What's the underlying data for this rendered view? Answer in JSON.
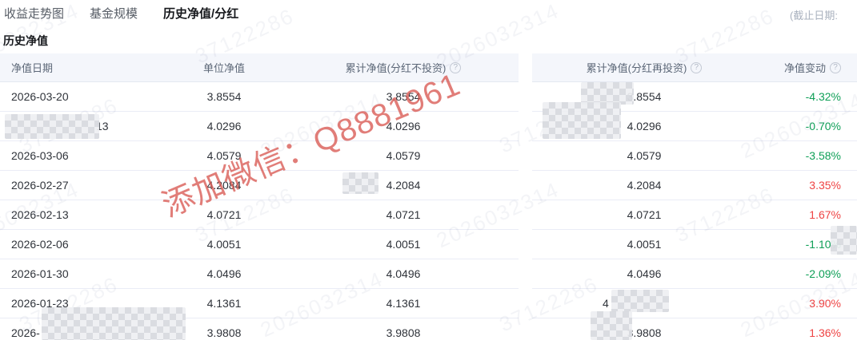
{
  "tabs": {
    "items": [
      {
        "label": "收益走势图",
        "active": false
      },
      {
        "label": "基金规模",
        "active": false
      },
      {
        "label": "历史净值/分红",
        "active": true
      }
    ]
  },
  "cutoff": {
    "label": "(截止日期:"
  },
  "section": {
    "title": "历史净值"
  },
  "table": {
    "headers": {
      "date": "净值日期",
      "unit_nav": "单位净值",
      "cum_nav_no_reinvest": "累计净值(分红不投资)",
      "cum_nav_reinvest": "累计净值(分红再投资)",
      "nav_change": "净值变动"
    },
    "help_icon": "?",
    "rows": [
      {
        "date": "2026-03-20",
        "unit_nav": "3.8554",
        "cum_nav_no_reinvest": "3.8554",
        "cum_nav_reinvest": "3.8554",
        "nav_change": "-4.32%",
        "direction": "down"
      },
      {
        "date": "13",
        "date_masked": true,
        "date_pad": 106,
        "unit_nav": "4.0296",
        "cum_nav_no_reinvest": "4.0296",
        "cum_nav_reinvest": "4.0296",
        "nav_change": "-0.70%",
        "direction": "down"
      },
      {
        "date": "2026-03-06",
        "unit_nav": "4.0579",
        "cum_nav_no_reinvest": "4.0579",
        "cum_nav_reinvest": "4.0579",
        "nav_change": "-3.58%",
        "direction": "down"
      },
      {
        "date": "2026-02-27",
        "unit_nav": "4.2084",
        "cum_nav_no_reinvest": "4.2084",
        "cum_nav_reinvest": "4.2084",
        "nav_change": "3.35%",
        "direction": "up"
      },
      {
        "date": "2026-02-13",
        "unit_nav": "4.0721",
        "cum_nav_no_reinvest": "4.0721",
        "cum_nav_reinvest": "4.0721",
        "nav_change": "1.67%",
        "direction": "up"
      },
      {
        "date": "2026-02-06",
        "unit_nav": "4.0051",
        "cum_nav_no_reinvest": "4.0051",
        "cum_nav_reinvest": "4.0051",
        "nav_change": "-1.10%",
        "direction": "down"
      },
      {
        "date": "2026-01-30",
        "unit_nav": "4.0496",
        "cum_nav_no_reinvest": "4.0496",
        "cum_nav_reinvest": "4.0496",
        "nav_change": "-2.09%",
        "direction": "down"
      },
      {
        "date": "2026-01-23",
        "unit_nav": "4.1361",
        "cum_nav_no_reinvest": "4.1361",
        "cum_nav_reinvest": "4",
        "cum2_masked": true,
        "cum2_pad": 88,
        "nav_change": "3.90%",
        "direction": "up"
      },
      {
        "date": "2026-",
        "date_masked": true,
        "unit_nav": "3.9808",
        "cum_nav_no_reinvest": "3.9808",
        "cum_nav_reinvest": "3.9808",
        "nav_change": "1.36%",
        "direction": "up"
      }
    ]
  },
  "watermark": {
    "text": "添加微信：Q8881961"
  },
  "background_watermarks": {
    "texts": [
      "2026032314",
      "37122286"
    ]
  },
  "colors": {
    "up": "#ee4444",
    "down": "#0f9f57",
    "header_bg": "#f4f6fb",
    "watermark_red": "rgba(216,88,82,0.78)"
  }
}
